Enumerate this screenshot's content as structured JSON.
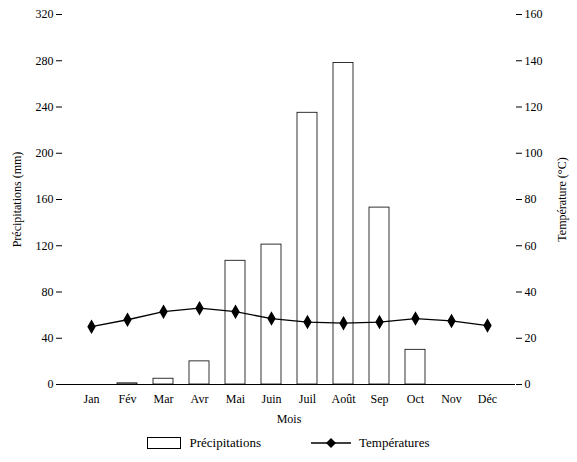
{
  "chart_data": {
    "type": "bar",
    "x_label": "Mois",
    "y_label": "Précipitations (mm)",
    "y2_label": "Température (°C)",
    "categories": [
      "Jan",
      "Fév",
      "Mar",
      "Avr",
      "Mai",
      "Juin",
      "Juil",
      "Août",
      "Sep",
      "Oct",
      "Nov",
      "Déc"
    ],
    "series": [
      {
        "name": "Précipitations",
        "type": "bar",
        "color": "#ffffff",
        "values": [
          0,
          1,
          5,
          20,
          107,
          121,
          235,
          278,
          153,
          30,
          0,
          0
        ]
      },
      {
        "name": "Températures",
        "type": "line",
        "axis": "y2",
        "color": "#000000",
        "marker": "diamond",
        "values": [
          25,
          28,
          31.5,
          33,
          31.5,
          28.5,
          27,
          26.5,
          27,
          28.5,
          27.5,
          25.5
        ]
      }
    ],
    "ylim": [
      0,
      320
    ],
    "yticks": [
      0,
      40,
      80,
      120,
      160,
      200,
      240,
      280,
      320
    ],
    "y2lim": [
      0,
      160
    ],
    "y2ticks": [
      0,
      20,
      40,
      60,
      80,
      100,
      120,
      140,
      160
    ],
    "legend": "bottom"
  }
}
